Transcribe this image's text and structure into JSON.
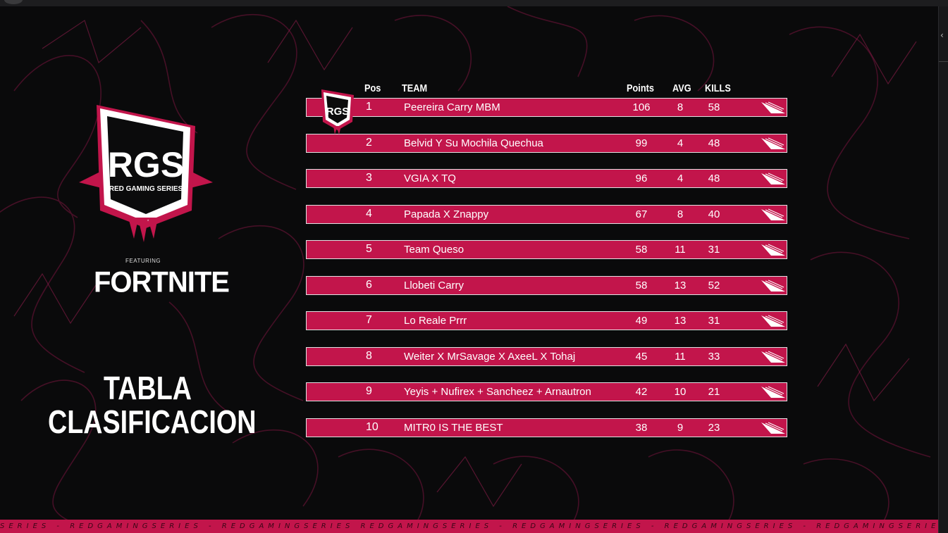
{
  "branding": {
    "logo_main": "RGS",
    "logo_sub": "RED GAMING SERIES",
    "featuring": "FEATURING",
    "game": "FORTNITE",
    "badge_text": "RGS"
  },
  "title": {
    "line1": "TABLA",
    "line2": "CLASIFICACION"
  },
  "table": {
    "headers": {
      "pos": "Pos",
      "team": "TEAM",
      "points": "Points",
      "avg": "AVG",
      "kills": "KILLS"
    },
    "rows": [
      {
        "pos": "1",
        "team": "Peereira Carry MBM",
        "points": "106",
        "avg": "8",
        "kills": "58"
      },
      {
        "pos": "2",
        "team": "Belvid Y Su Mochila Quechua",
        "points": "99",
        "avg": "4",
        "kills": "48"
      },
      {
        "pos": "3",
        "team": "VGIA X TQ",
        "points": "96",
        "avg": "4",
        "kills": "48"
      },
      {
        "pos": "4",
        "team": "Papada X Znappy",
        "points": "67",
        "avg": "8",
        "kills": "40"
      },
      {
        "pos": "5",
        "team": "Team Queso",
        "points": "58",
        "avg": "11",
        "kills": "31"
      },
      {
        "pos": "6",
        "team": "Llobeti Carry",
        "points": "58",
        "avg": "13",
        "kills": "52"
      },
      {
        "pos": "7",
        "team": "Lo Reale Prrr",
        "points": "49",
        "avg": "13",
        "kills": "31"
      },
      {
        "pos": "8",
        "team": "Weiter X MrSavage X AxeeL X Tohaj",
        "points": "45",
        "avg": "11",
        "kills": "33"
      },
      {
        "pos": "9",
        "team": "Yeyis + Nufirex + Sancheez + Arnautron",
        "points": "42",
        "avg": "10",
        "kills": "21"
      },
      {
        "pos": "10",
        "team": "MITR0 IS THE BEST",
        "points": "38",
        "avg": "9",
        "kills": "23"
      }
    ]
  },
  "footer": {
    "strip_text": "SERIES  -  REDGAMINGSERIES  -  REDGAMINGSERIES REDGAMINGSERIES  -  REDGAMINGSERIES  -  REDGAMINGSERIES  -  REDGAMINGSERIES"
  },
  "colors": {
    "accent": "#c2154b",
    "background": "#0a0a0b",
    "row_border": "#e1e1e3"
  },
  "icons": [
    "rgs-logo-icon",
    "rgs-badge-icon",
    "row-arrow-icon",
    "chevron-left-icon"
  ]
}
